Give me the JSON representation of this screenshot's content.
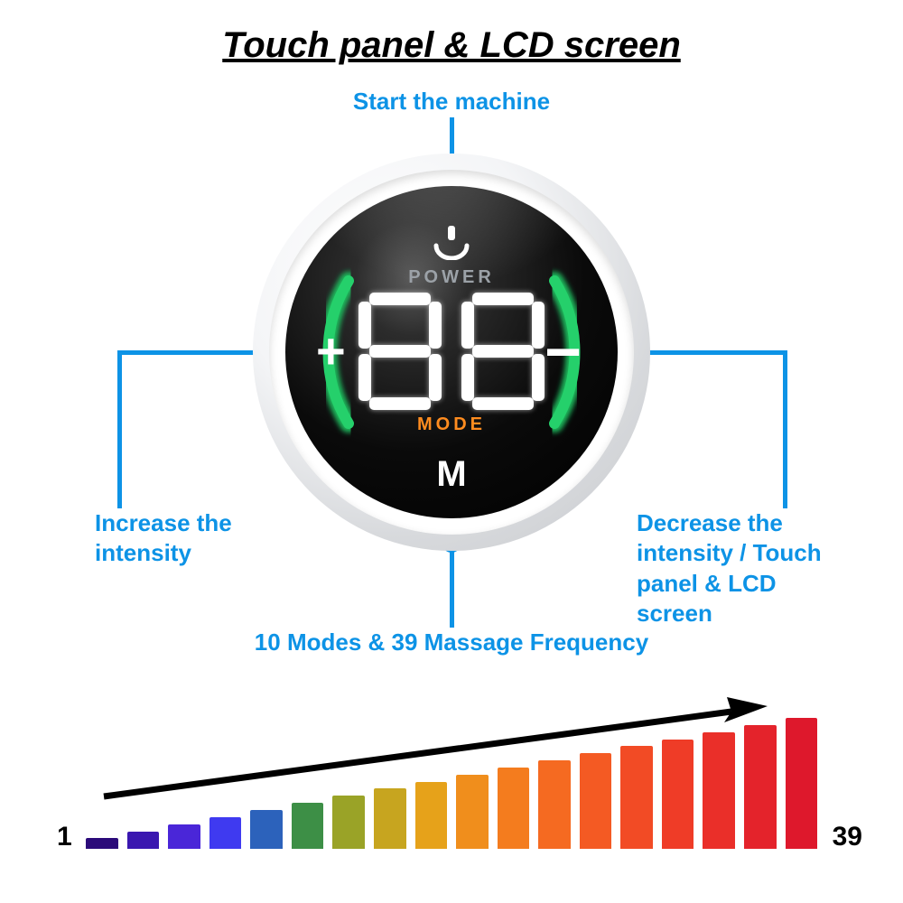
{
  "title": "Touch panel & LCD screen",
  "callouts": {
    "top": "Start the machine",
    "left": "Increase the\nintensity",
    "right": "Decrease the\nintensity / Touch\npanel & LCD screen",
    "bottom": "10 Modes & 39 Massage Frequency"
  },
  "accent_color": "#0d93e6",
  "device": {
    "plus": "+",
    "minus": "−",
    "power_text": "POWER",
    "mode_text": "MODE",
    "m_text": "M",
    "digit_value": "88",
    "arc_color": "#1fb85b",
    "mode_color": "#ff8c1f",
    "text_muted": "#9aa0a6"
  },
  "intensity_bars": {
    "min_label": "1",
    "max_label": "39",
    "count": 18,
    "min_height_pct": 8,
    "max_height_pct": 100,
    "colors": [
      "#2b0a7a",
      "#3a17b0",
      "#4a26d8",
      "#3f3af0",
      "#2c62bb",
      "#3d8f46",
      "#9aa327",
      "#c7a51f",
      "#e6a21a",
      "#f08e1c",
      "#f47c1e",
      "#f56a21",
      "#f45a23",
      "#f24b25",
      "#ef3c27",
      "#ea2f29",
      "#e4232b",
      "#de182c"
    ]
  },
  "arrow": {
    "color": "#000000",
    "stroke_width": 7
  }
}
